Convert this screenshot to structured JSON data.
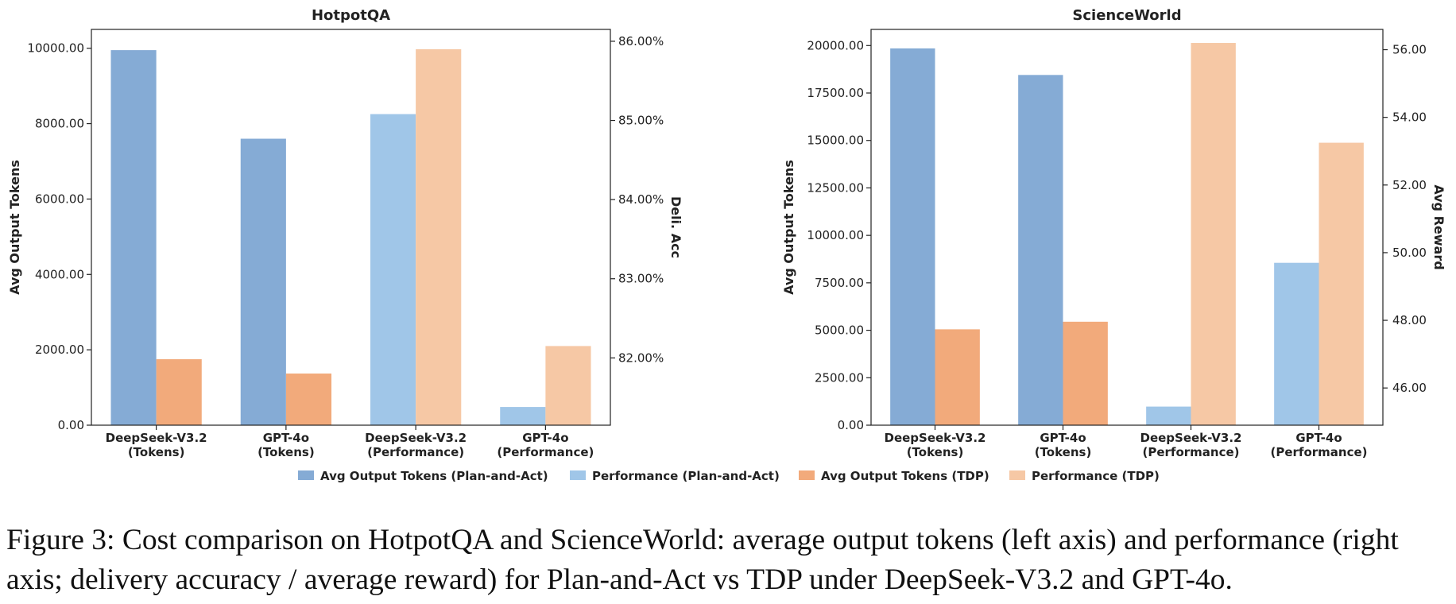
{
  "colors": {
    "plan_tokens": "#85abd5",
    "plan_perf": "#a0c6e8",
    "tdp_tokens": "#f2aa7b",
    "tdp_perf": "#f6c8a5",
    "axis": "#222222"
  },
  "legend": [
    {
      "label": "Avg Output Tokens (Plan-and-Act)",
      "color_key": "plan_tokens"
    },
    {
      "label": "Performance (Plan-and-Act)",
      "color_key": "plan_perf"
    },
    {
      "label": "Avg Output Tokens (TDP)",
      "color_key": "tdp_tokens"
    },
    {
      "label": "Performance (TDP)",
      "color_key": "tdp_perf"
    }
  ],
  "caption": "Figure 3: Cost comparison on HotpotQA and ScienceWorld: average output tokens (left axis) and performance (right axis; delivery accuracy / average reward) for Plan-and-Act vs TDP under DeepSeek-V3.2 and GPT-4o.",
  "chart_data": [
    {
      "type": "bar",
      "title": "HotpotQA",
      "ylabel": "Avg Output Tokens",
      "y2label": "Deli. Acc",
      "categories": [
        [
          "DeepSeek-V3.2",
          "(Tokens)"
        ],
        [
          "GPT-4o",
          "(Tokens)"
        ],
        [
          "DeepSeek-V3.2",
          "(Performance)"
        ],
        [
          "GPT-4o",
          "(Performance)"
        ]
      ],
      "ylim": [
        0,
        10500
      ],
      "yticks": [
        0,
        2000,
        4000,
        6000,
        8000,
        10000
      ],
      "ytick_labels": [
        "0.00",
        "2000.00",
        "4000.00",
        "6000.00",
        "8000.00",
        "10000.00"
      ],
      "y2lim": [
        81.15,
        86.15
      ],
      "y2ticks": [
        82,
        83,
        84,
        85,
        86
      ],
      "y2tick_labels": [
        "82.00%",
        "83.00%",
        "84.00%",
        "85.00%",
        "86.00%"
      ],
      "bars": [
        {
          "category": 0,
          "slot": 0,
          "axis": "left",
          "value": 9950,
          "series": "plan_tokens"
        },
        {
          "category": 0,
          "slot": 1,
          "axis": "left",
          "value": 1750,
          "series": "tdp_tokens"
        },
        {
          "category": 1,
          "slot": 0,
          "axis": "left",
          "value": 7600,
          "series": "plan_tokens"
        },
        {
          "category": 1,
          "slot": 1,
          "axis": "left",
          "value": 1370,
          "series": "tdp_tokens"
        },
        {
          "category": 2,
          "slot": 0,
          "axis": "right",
          "value": 85.08,
          "series": "plan_perf"
        },
        {
          "category": 2,
          "slot": 1,
          "axis": "right",
          "value": 85.9,
          "series": "tdp_perf"
        },
        {
          "category": 3,
          "slot": 0,
          "axis": "right",
          "value": 81.38,
          "series": "plan_perf"
        },
        {
          "category": 3,
          "slot": 1,
          "axis": "right",
          "value": 82.15,
          "series": "tdp_perf"
        }
      ]
    },
    {
      "type": "bar",
      "title": "ScienceWorld",
      "ylabel": "Avg Output Tokens",
      "y2label": "Avg Reward",
      "categories": [
        [
          "DeepSeek-V3.2",
          "(Tokens)"
        ],
        [
          "GPT-4o",
          "(Tokens)"
        ],
        [
          "DeepSeek-V3.2",
          "(Performance)"
        ],
        [
          "GPT-4o",
          "(Performance)"
        ]
      ],
      "ylim": [
        0,
        20850
      ],
      "yticks": [
        0,
        2500,
        5000,
        7500,
        10000,
        12500,
        15000,
        17500,
        20000
      ],
      "ytick_labels": [
        "0.00",
        "2500.00",
        "5000.00",
        "7500.00",
        "10000.00",
        "12500.00",
        "15000.00",
        "17500.00",
        "20000.00"
      ],
      "y2lim": [
        44.9,
        56.6
      ],
      "y2ticks": [
        46,
        48,
        50,
        52,
        54,
        56
      ],
      "y2tick_labels": [
        "46.00",
        "48.00",
        "50.00",
        "52.00",
        "54.00",
        "56.00"
      ],
      "bars": [
        {
          "category": 0,
          "slot": 0,
          "axis": "left",
          "value": 19850,
          "series": "plan_tokens"
        },
        {
          "category": 0,
          "slot": 1,
          "axis": "left",
          "value": 5050,
          "series": "tdp_tokens"
        },
        {
          "category": 1,
          "slot": 0,
          "axis": "left",
          "value": 18450,
          "series": "plan_tokens"
        },
        {
          "category": 1,
          "slot": 1,
          "axis": "left",
          "value": 5450,
          "series": "tdp_tokens"
        },
        {
          "category": 2,
          "slot": 0,
          "axis": "right",
          "value": 45.45,
          "series": "plan_perf"
        },
        {
          "category": 2,
          "slot": 1,
          "axis": "right",
          "value": 56.2,
          "series": "tdp_perf"
        },
        {
          "category": 3,
          "slot": 0,
          "axis": "right",
          "value": 49.7,
          "series": "plan_perf"
        },
        {
          "category": 3,
          "slot": 1,
          "axis": "right",
          "value": 53.25,
          "series": "tdp_perf"
        }
      ]
    }
  ]
}
